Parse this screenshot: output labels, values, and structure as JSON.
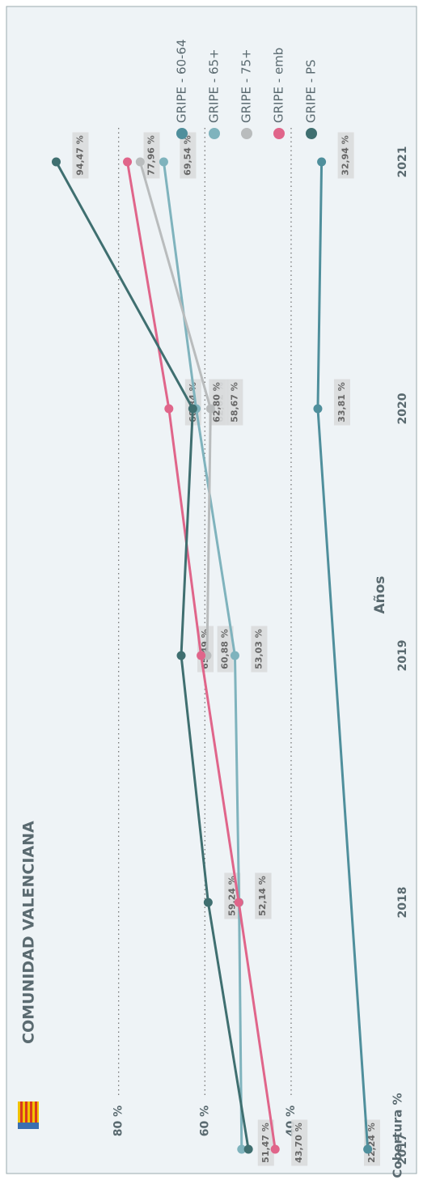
{
  "chart_data": {
    "type": "line",
    "title": "COMUNIDAD VALENCIANA",
    "x_label": "Años",
    "y_label": "Cobertura %",
    "x": [
      2017,
      2018,
      2019,
      2020,
      2021
    ],
    "xlim": [
      2017,
      2021
    ],
    "ylim": [
      20,
      100
    ],
    "yticks": [
      {
        "value": 40,
        "label": "40 %"
      },
      {
        "value": 60,
        "label": "60 %"
      },
      {
        "value": 80,
        "label": "80 %"
      }
    ],
    "grid": true,
    "legend": "right",
    "series": [
      {
        "name": "GRIPE - 60-64",
        "color": "#4f8f9c",
        "x": [
          2017,
          2020,
          2021
        ],
        "values": [
          22.24,
          33.81,
          32.94
        ],
        "value_labels": [
          "22,24 %",
          "33,81 %",
          "32,94 %"
        ]
      },
      {
        "name": "GRIPE - 65+",
        "color": "#7fb3bd",
        "values": [
          51.47,
          52.07,
          53.03,
          62.02,
          69.54
        ],
        "value_labels": [
          "51,47 %",
          "52,07 %",
          "53,03 %",
          "62,02 %",
          "69,54 %"
        ]
      },
      {
        "name": "GRIPE - 75+",
        "color": "#b9bcbd",
        "values": [
          null,
          null,
          59.5,
          58.67,
          75
        ],
        "value_labels": [
          null,
          null,
          null,
          "58,67 %",
          null
        ]
      },
      {
        "name": "GRIPE - emb",
        "color": "#e0658a",
        "values": [
          43.7,
          52.14,
          60.88,
          68.34,
          77.96
        ],
        "value_labels": [
          "43,70 %",
          "52,14 %",
          "60,88 %",
          "68,34 %",
          "77,96 %"
        ]
      },
      {
        "name": "GRIPE - PS",
        "color": "#3f6f70",
        "values": [
          49.9,
          59.24,
          65.49,
          62.8,
          94.47
        ],
        "value_labels": [
          null,
          "59,24 %",
          "65,49 %",
          "62,80 %",
          "94,47 %"
        ]
      }
    ]
  }
}
